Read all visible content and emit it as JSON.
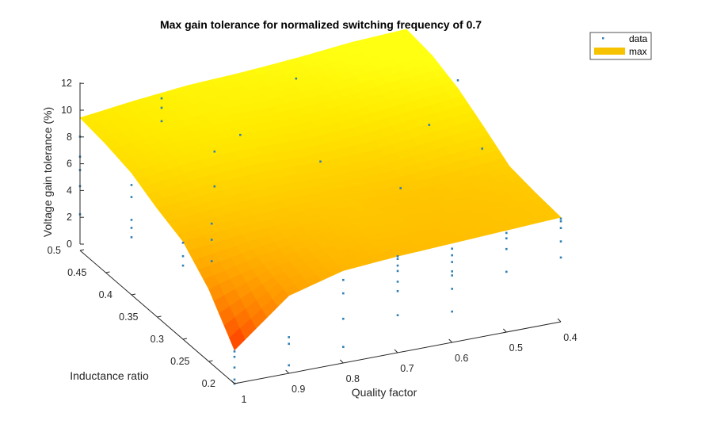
{
  "chart_data": {
    "type": "surface3d",
    "title": "Max gain tolerance for normalized switching frequency of 0.7",
    "xlabel": "Quality factor",
    "ylabel": "Inductance ratio",
    "zlabel": "Voltage gain tolerance (%)",
    "xlim": [
      0.4,
      1.0
    ],
    "ylim": [
      0.2,
      0.5
    ],
    "zlim": [
      0,
      12
    ],
    "x_ticks": [
      "0.4",
      "0.5",
      "0.6",
      "0.7",
      "0.8",
      "0.9",
      "1"
    ],
    "y_ticks": [
      "0.2",
      "0.25",
      "0.3",
      "0.35",
      "0.4",
      "0.45",
      "0.5"
    ],
    "z_ticks": [
      "0",
      "2",
      "4",
      "6",
      "8",
      "10",
      "12"
    ],
    "grid": false,
    "legend_position": "top-right",
    "series": [
      {
        "name": "data",
        "style": "points",
        "color": "#2f7fb5"
      },
      {
        "name": "max",
        "style": "surface",
        "color": "#f7c300"
      }
    ],
    "surface": {
      "x": [
        1.0,
        0.9,
        0.8,
        0.7,
        0.6,
        0.5,
        0.4
      ],
      "y": [
        0.2,
        0.25,
        0.3,
        0.35,
        0.4,
        0.45,
        0.5
      ],
      "z": [
        [
          2.5,
          5.8,
          6.9,
          7.2,
          7.4,
          7.6,
          7.8
        ],
        [
          5.4,
          6.5,
          7.3,
          7.7,
          7.6,
          7.7,
          8.0
        ],
        [
          7.3,
          7.6,
          7.8,
          8.0,
          7.8,
          8.0,
          8.3
        ],
        [
          8.1,
          8.5,
          8.7,
          8.6,
          8.7,
          9.2,
          9.6
        ],
        [
          9.1,
          9.7,
          9.9,
          9.8,
          10.0,
          10.4,
          10.8
        ],
        [
          9.6,
          10.2,
          10.5,
          10.6,
          10.8,
          11.3,
          11.6
        ],
        [
          9.9,
          10.4,
          10.8,
          11.0,
          11.3,
          11.7,
          11.9
        ]
      ]
    },
    "data_points": [
      {
        "x": 1.0,
        "y": 0.2,
        "z": [
          0,
          0.3,
          1.2,
          2.0,
          2.4
        ]
      },
      {
        "x": 0.9,
        "y": 0.2,
        "z": [
          0.6,
          2.2,
          2.7
        ]
      },
      {
        "x": 0.8,
        "y": 0.2,
        "z": [
          1.2,
          3.3,
          5.2,
          6.2
        ]
      },
      {
        "x": 0.7,
        "y": 0.2,
        "z": [
          2.8,
          4.6,
          5.3,
          6.1,
          6.5,
          7.0,
          7.2
        ]
      },
      {
        "x": 0.6,
        "y": 0.2,
        "z": [
          2.3,
          4.0,
          5.0,
          5.3,
          6.0,
          6.5,
          7.0
        ]
      },
      {
        "x": 0.5,
        "y": 0.2,
        "z": [
          4.5,
          6.2,
          7.0,
          7.4
        ]
      },
      {
        "x": 0.4,
        "y": 0.2,
        "z": [
          4.8,
          6.0,
          7.0,
          7.5,
          7.7
        ]
      },
      {
        "x": 1.0,
        "y": 0.3,
        "z": [
          5.5,
          6.2,
          7.2
        ]
      },
      {
        "x": 0.9,
        "y": 0.35,
        "z": [
          3.4,
          5.0,
          6.2
        ]
      },
      {
        "x": 0.8,
        "y": 0.45,
        "z": [
          4.9,
          7.5
        ]
      },
      {
        "x": 1.0,
        "y": 0.4,
        "z": [
          4.3,
          5.0,
          5.6,
          7.3,
          8.2
        ]
      },
      {
        "x": 0.85,
        "y": 0.5,
        "z": [
          8.5,
          9.5,
          10.2
        ]
      },
      {
        "x": 1.0,
        "y": 0.5,
        "z": [
          2.7,
          4.8,
          6.0,
          7.0,
          8.5
        ]
      },
      {
        "x": 0.7,
        "y": 0.35,
        "z": [
          9.3
        ]
      },
      {
        "x": 0.6,
        "y": 0.3,
        "z": [
          8.2
        ]
      },
      {
        "x": 0.5,
        "y": 0.35,
        "z": [
          10.5
        ]
      },
      {
        "x": 0.4,
        "y": 0.4,
        "z": [
          11.4
        ]
      },
      {
        "x": 0.65,
        "y": 0.45,
        "z": [
          11.8
        ]
      },
      {
        "x": 0.8,
        "y": 0.4,
        "z": [
          10.4
        ]
      },
      {
        "x": 0.45,
        "y": 0.3,
        "z": [
          10.0
        ]
      }
    ]
  }
}
